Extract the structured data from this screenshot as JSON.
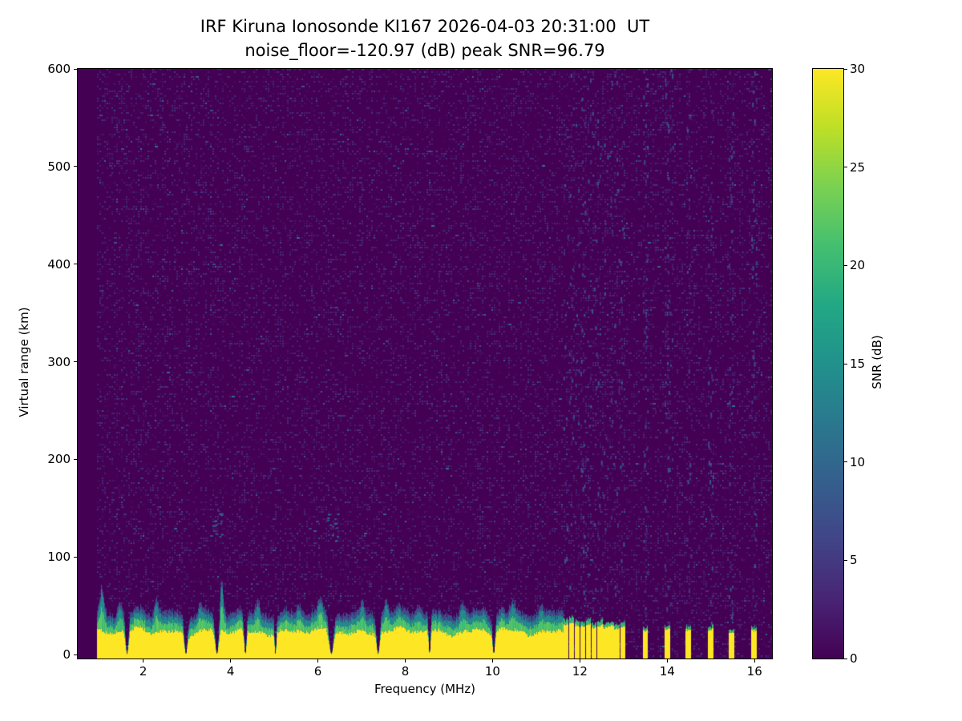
{
  "figure": {
    "title_line1": "IRF Kiruna Ionosonde KI167 2026-04-03 20:31:00  UT",
    "title_line2": "noise_floor=-120.97 (dB) peak SNR=96.79",
    "noise_floor_db": -120.97,
    "peak_snr_db": 96.79,
    "station": "IRF Kiruna Ionosonde KI167",
    "timestamp_ut": "2026-04-03 20:31:00"
  },
  "chart_data": {
    "type": "heatmap",
    "title": "IRF Kiruna Ionosonde KI167 2026-04-03 20:31:00  UT\nnoise_floor=-120.97 (dB) peak SNR=96.79",
    "xlabel": "Frequency (MHz)",
    "ylabel": "Virtual range (km)",
    "colorbar_label": "SNR (dB)",
    "xlim": [
      0.5,
      16.4
    ],
    "ylim": [
      -4,
      600
    ],
    "clim": [
      0,
      30
    ],
    "xticks": [
      2,
      4,
      6,
      8,
      10,
      12,
      14,
      16
    ],
    "yticks": [
      0,
      100,
      200,
      300,
      400,
      500,
      600
    ],
    "colorbar_ticks": [
      0,
      5,
      10,
      15,
      20,
      25,
      30
    ],
    "grid": false,
    "colormap": "viridis",
    "colormap_stops": [
      "#440154",
      "#482475",
      "#414487",
      "#355f8d",
      "#2a788e",
      "#21918c",
      "#22a884",
      "#44bf70",
      "#7ad151",
      "#bddf26",
      "#fde725"
    ],
    "heatmap": {
      "noise_seed": 167,
      "data_start_mhz": 0.95,
      "background_snr_db": 0,
      "noise_speckle": {
        "density": 0.3,
        "typical_db": 4.5,
        "bright_prob": 0.05,
        "bright_extra_db": 8
      },
      "band": {
        "start_mhz": 0.95,
        "end_mhz": 11.62,
        "yellow_top_km": 24,
        "green_layer_km": 6,
        "teal_layer_km": 5,
        "blue_layer_km": 4,
        "yellow_snr_db": 30,
        "green_snr_db": 20,
        "teal_snr_db": 13,
        "blue_snr_db": 6
      },
      "notches_mhz": [
        [
          1.62,
          0.05
        ],
        [
          2.97,
          0.05
        ],
        [
          3.68,
          0.06
        ],
        [
          4.33,
          0.04
        ],
        [
          5.02,
          0.03
        ],
        [
          6.3,
          0.07
        ],
        [
          7.37,
          0.05
        ],
        [
          8.55,
          0.03
        ],
        [
          10.02,
          0.04
        ]
      ],
      "plumes_mhz": [
        [
          1.05,
          26
        ],
        [
          1.45,
          10
        ],
        [
          2.3,
          14
        ],
        [
          3.3,
          9
        ],
        [
          3.78,
          30
        ],
        [
          4.62,
          12
        ],
        [
          5.55,
          8
        ],
        [
          6.05,
          10
        ],
        [
          7.0,
          10
        ],
        [
          7.55,
          14
        ],
        [
          8.3,
          8
        ],
        [
          9.3,
          12
        ],
        [
          10.45,
          10
        ],
        [
          11.1,
          9
        ]
      ],
      "stripes": [
        [
          11.67,
          0.08,
          31,
          4
        ],
        [
          11.8,
          0.08,
          33,
          5
        ],
        [
          11.93,
          0.08,
          30,
          4
        ],
        [
          12.06,
          0.08,
          29,
          3
        ],
        [
          12.19,
          0.08,
          31,
          4
        ],
        [
          12.32,
          0.08,
          28,
          3
        ],
        [
          12.45,
          0.08,
          30,
          4
        ],
        [
          12.58,
          0.08,
          28,
          3
        ],
        [
          12.71,
          0.08,
          30,
          3
        ],
        [
          12.84,
          0.08,
          27,
          3
        ],
        [
          12.97,
          0.08,
          29,
          3
        ],
        [
          13.49,
          0.09,
          25,
          2
        ],
        [
          13.99,
          0.1,
          27,
          2
        ],
        [
          14.48,
          0.09,
          25,
          2
        ],
        [
          14.98,
          0.09,
          26,
          2
        ],
        [
          15.46,
          0.09,
          23,
          2
        ],
        [
          15.98,
          0.1,
          25,
          2
        ]
      ],
      "rfi_columns": [
        [
          11.67,
          0.06
        ],
        [
          11.8,
          0.07
        ],
        [
          11.93,
          0.06
        ],
        [
          12.06,
          0.09
        ],
        [
          12.19,
          0.07
        ],
        [
          12.32,
          0.08
        ],
        [
          12.45,
          0.07
        ],
        [
          12.58,
          0.07
        ],
        [
          12.71,
          0.06
        ],
        [
          12.84,
          0.08
        ],
        [
          12.97,
          0.06
        ],
        [
          13.49,
          0.1
        ],
        [
          13.99,
          0.14
        ],
        [
          14.07,
          0.06
        ],
        [
          14.48,
          0.12
        ],
        [
          14.98,
          0.11
        ],
        [
          15.46,
          0.11
        ],
        [
          15.98,
          0.11
        ]
      ],
      "echo_patches": [
        [
          3.68,
          135,
          14
        ],
        [
          6.33,
          130,
          12
        ]
      ]
    }
  }
}
